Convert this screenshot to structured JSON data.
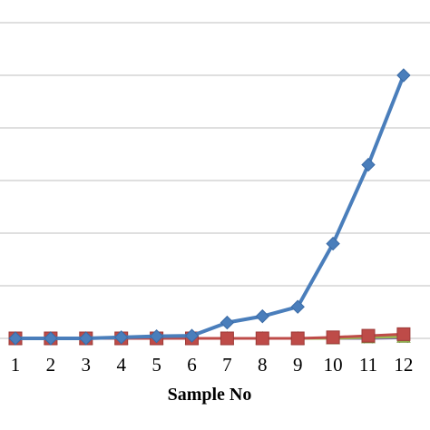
{
  "chart_data": {
    "type": "line",
    "title": "",
    "xlabel": "Sample No",
    "ylabel": "",
    "categories": [
      "1",
      "2",
      "3",
      "4",
      "5",
      "6",
      "7",
      "8",
      "9",
      "10",
      "11",
      "12"
    ],
    "ylim": [
      0,
      6.2
    ],
    "grid": true,
    "series": [
      {
        "marker": "diamond",
        "color": "#4a7ebb",
        "values": [
          0.0,
          0.0,
          0.0,
          0.02,
          0.04,
          0.05,
          0.3,
          0.42,
          0.6,
          1.8,
          3.3,
          5.0
        ]
      },
      {
        "marker": "square",
        "color": "#be4b48",
        "values": [
          0.0,
          0.0,
          0.0,
          0.0,
          0.0,
          0.0,
          0.0,
          0.0,
          0.0,
          0.02,
          0.05,
          0.08
        ]
      },
      {
        "marker": "triangle",
        "color": "#98b954",
        "values": [
          0.0,
          0.0,
          0.0,
          0.0,
          0.0,
          0.0,
          0.0,
          0.0,
          0.0,
          0.0,
          0.02,
          0.03
        ]
      },
      {
        "marker": "cross",
        "color": "#7d60a0",
        "values": [
          0.0,
          0.0,
          0.0,
          0.0,
          0.0,
          0.0,
          0.0,
          0.0,
          0.0,
          0.0,
          0.0,
          0.01
        ]
      }
    ]
  }
}
